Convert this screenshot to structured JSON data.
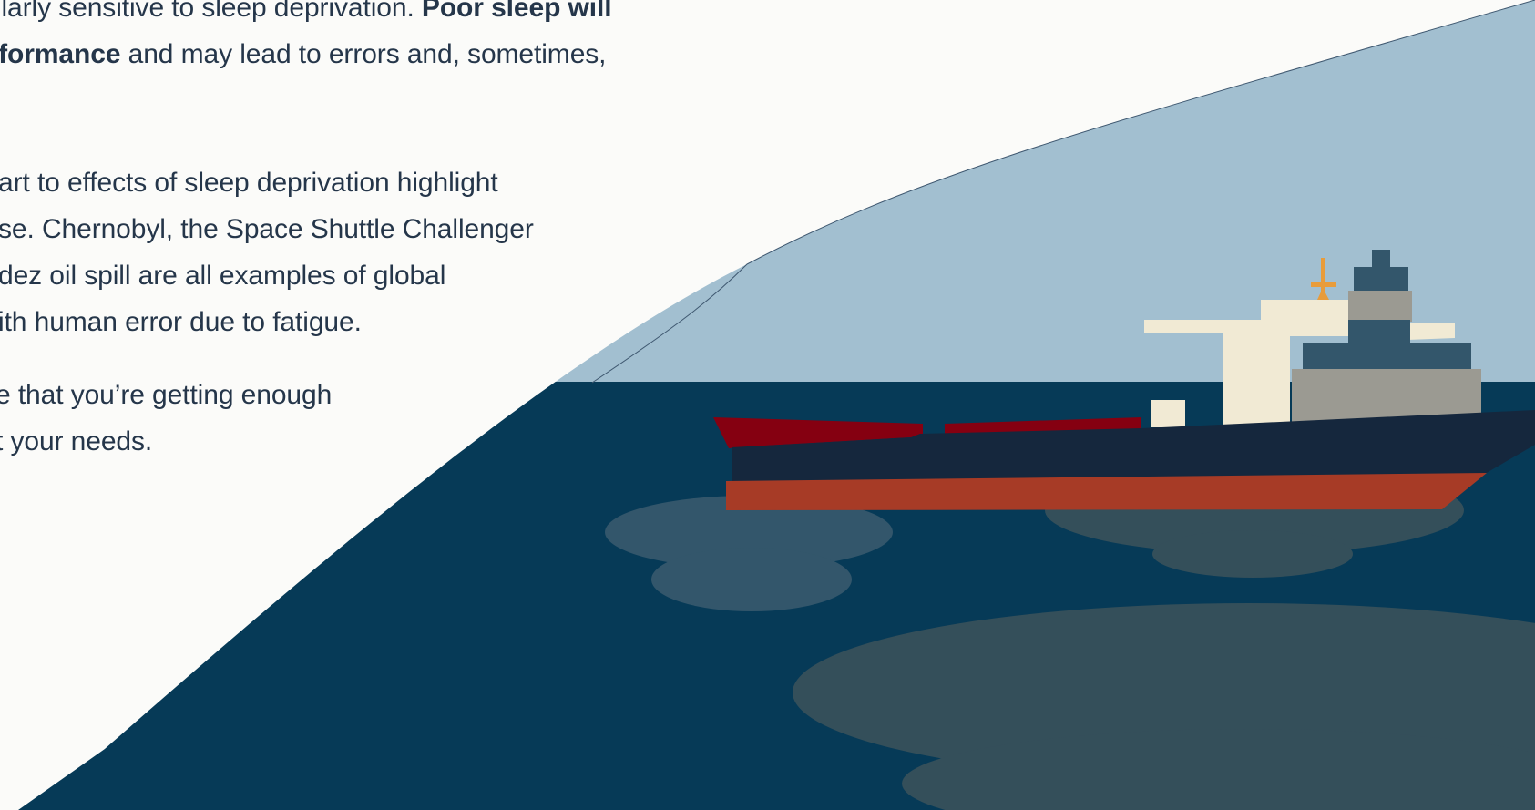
{
  "article": {
    "paragraph_1": {
      "line_1_text": "cularly sensitive to sleep deprivation. ",
      "line_1_bold": "Poor sleep will",
      "line_2_bold": "erformance",
      "line_2_text": " and may lead to errors and, sometimes,"
    },
    "paragraph_2": {
      "lines": [
        "art to effects of sleep deprivation highlight",
        "se. Chernobyl, the Space Shuttle Challenger",
        "dez oil spill are all examples of global",
        "ith human error due to fatigue."
      ]
    },
    "paragraph_3": {
      "lines": [
        "e that you’re getting enough",
        "t your needs."
      ]
    }
  },
  "illustration": {
    "subject": "oil-tanker-ship-with-oil-spill",
    "colors": {
      "sky": "#a2bfd0",
      "sea": "#063a57",
      "oil_slick_light": "#33566b",
      "oil_slick_dark": "#344f5a",
      "deck_red": "#850011",
      "hull_dark": "#15273d",
      "hull_orange": "#a73b26",
      "superstructure_cream": "#f1ead4",
      "superstructure_grey": "#9b9a92",
      "superstructure_blue": "#33566b",
      "mast_orange": "#e89c3b"
    }
  }
}
